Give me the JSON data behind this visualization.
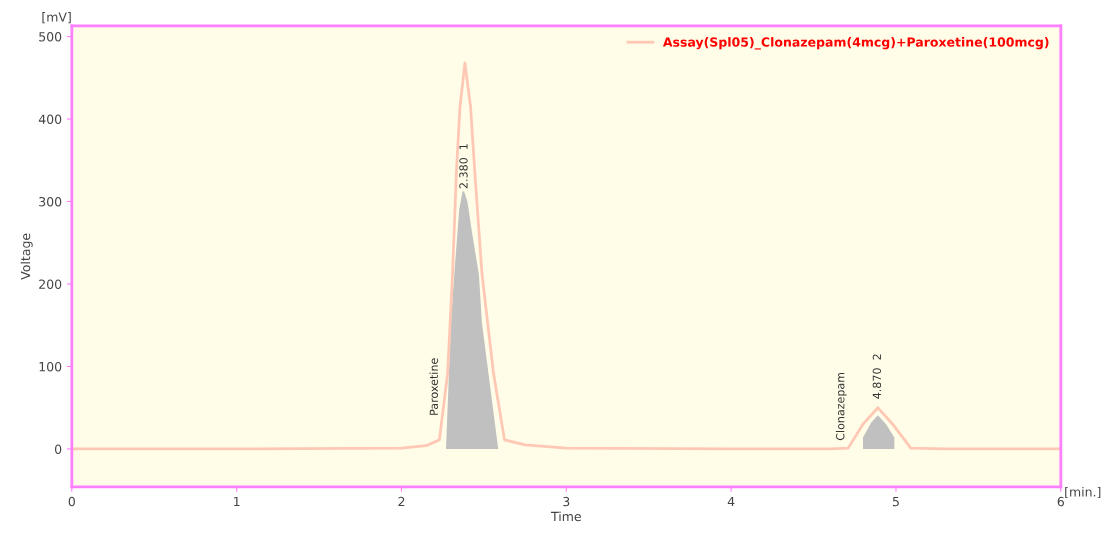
{
  "chart_data": {
    "type": "line",
    "xlabel": "Time",
    "ylabel": "Voltage",
    "xlim": [
      0,
      6
    ],
    "xticks": [
      0,
      1,
      2,
      3,
      4,
      5,
      6
    ],
    "ylim": [
      -46,
      513
    ],
    "yticks": [
      0,
      100,
      200,
      300,
      400,
      500
    ],
    "grid": false,
    "legend": "top right",
    "line_style": "solid",
    "marker": "none",
    "series": [
      {
        "type": "area",
        "color": "#c0c0c0",
        "x": [
          2.27,
          2.3,
          2.32,
          2.35,
          2.37,
          2.38,
          2.4,
          2.43,
          2.47,
          2.488,
          2.587
        ],
        "values": [
          0,
          153,
          211,
          290,
          312,
          312,
          300,
          260,
          211,
          153,
          0
        ]
      },
      {
        "type": "area",
        "color": "#c0c0c0",
        "x": [
          4.8,
          4.85,
          4.89,
          4.94,
          4.99
        ],
        "values": [
          14,
          32,
          41,
          30,
          14
        ]
      },
      {
        "name": "Assay(Spl05)_Clonazepam(4mcg)+Paroxetine(100mcg)",
        "color": "#ffc8b4",
        "x": [
          0,
          1.0,
          2.0,
          2.15,
          2.23,
          2.28,
          2.31,
          2.333,
          2.355,
          2.385,
          2.419,
          2.445,
          2.488,
          2.558,
          2.625,
          2.75,
          3.0,
          4.0,
          4.6,
          4.71,
          4.8,
          4.89,
          4.98,
          5.09,
          5.3,
          6.0
        ],
        "values": [
          0,
          0,
          1,
          4,
          11,
          92,
          213,
          335,
          415,
          468,
          415,
          335,
          213,
          92,
          11,
          5,
          1,
          0,
          0,
          1,
          30,
          50,
          30,
          1,
          0,
          0
        ]
      }
    ],
    "annotations": [
      "[mV]",
      "[min.]",
      "Paroxetine",
      "2.380  1",
      "Clonazepam",
      "4.870  2"
    ]
  }
}
